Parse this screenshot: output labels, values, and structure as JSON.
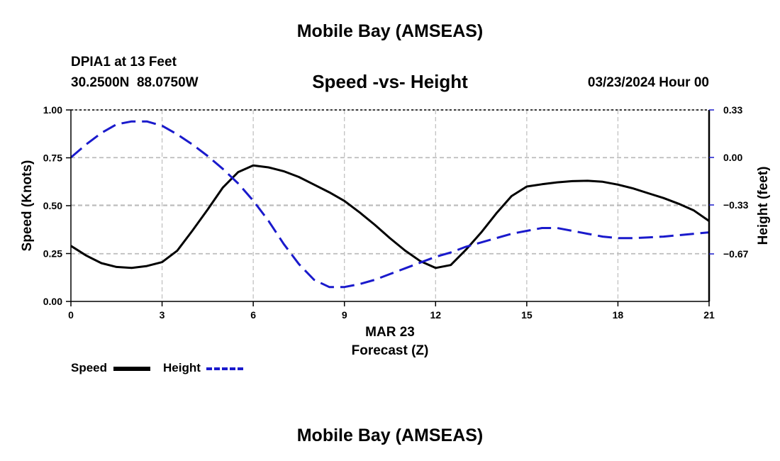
{
  "header": {
    "title_top": "Mobile Bay (AMSEAS)",
    "station": "DPIA1 at 13 Feet",
    "coords": "30.2500N  88.0750W",
    "subtitle": "Speed -vs- Height",
    "datetime": "03/23/2024 Hour 00",
    "title_bottom": "Mobile Bay (AMSEAS)"
  },
  "legend": {
    "speed_label": "Speed",
    "height_label": "Height"
  },
  "colors": {
    "speed": "#000000",
    "height": "#1a1acc",
    "grid": "#bdbdbd"
  },
  "chart_data": {
    "type": "line",
    "title": "Speed -vs- Height",
    "xlabel": "Forecast (Z)",
    "xlabel_date": "MAR 23",
    "ylabel_left": "Speed (Knots)",
    "ylabel_right": "Height (feet)",
    "xlim": [
      0,
      21
    ],
    "ylim_left": [
      0,
      1
    ],
    "ylim_right": [
      -1,
      0.33
    ],
    "x_ticks": [
      0,
      3,
      6,
      9,
      12,
      15,
      18,
      21
    ],
    "x_tick_labels": [
      "0",
      "3",
      "6",
      "9",
      "12",
      "15",
      "18",
      "21"
    ],
    "y_left_ticks": [
      0,
      0.25,
      0.5,
      0.75,
      1.0
    ],
    "y_left_tick_labels": [
      "0.00",
      "0.25",
      "0.50",
      "0.75",
      "1.00"
    ],
    "y_right_ticks": [
      0.33,
      0.0,
      -0.33,
      -0.67
    ],
    "y_right_tick_labels": [
      "0.33",
      "0.00",
      "−0.33",
      "−0.67"
    ],
    "grid": true,
    "series": [
      {
        "name": "Speed",
        "axis": "left",
        "style": "solid",
        "x": [
          0,
          0.5,
          1,
          1.5,
          2,
          2.5,
          3,
          3.5,
          4,
          4.5,
          5,
          5.5,
          6,
          6.5,
          7,
          7.5,
          8,
          8.5,
          9,
          9.5,
          10,
          10.5,
          11,
          11.5,
          12,
          12.5,
          13,
          13.5,
          14,
          14.5,
          15,
          15.5,
          16,
          16.5,
          17,
          17.5,
          18,
          18.5,
          19,
          19.5,
          20,
          20.5,
          21
        ],
        "values": [
          0.29,
          0.24,
          0.2,
          0.18,
          0.175,
          0.185,
          0.205,
          0.265,
          0.37,
          0.48,
          0.595,
          0.675,
          0.71,
          0.7,
          0.68,
          0.65,
          0.61,
          0.57,
          0.525,
          0.465,
          0.4,
          0.33,
          0.265,
          0.21,
          0.175,
          0.19,
          0.27,
          0.36,
          0.46,
          0.55,
          0.6,
          0.612,
          0.622,
          0.628,
          0.63,
          0.625,
          0.61,
          0.59,
          0.565,
          0.54,
          0.51,
          0.475,
          0.42
        ]
      },
      {
        "name": "Height",
        "axis": "right",
        "style": "dashed",
        "x": [
          0,
          0.5,
          1,
          1.5,
          2,
          2.5,
          3,
          3.5,
          4,
          4.5,
          5,
          5.5,
          6,
          6.5,
          7,
          7.5,
          8,
          8.5,
          9,
          9.5,
          10,
          10.5,
          11,
          11.5,
          12,
          12.5,
          13,
          13.5,
          14,
          14.5,
          15,
          15.5,
          16,
          16.5,
          17,
          17.5,
          18,
          18.5,
          19,
          19.5,
          20,
          20.5,
          21
        ],
        "values": [
          0.0,
          0.09,
          0.17,
          0.23,
          0.25,
          0.25,
          0.22,
          0.16,
          0.09,
          0.01,
          -0.08,
          -0.18,
          -0.3,
          -0.44,
          -0.6,
          -0.74,
          -0.85,
          -0.9,
          -0.9,
          -0.88,
          -0.85,
          -0.81,
          -0.77,
          -0.73,
          -0.69,
          -0.66,
          -0.62,
          -0.59,
          -0.56,
          -0.53,
          -0.51,
          -0.49,
          -0.49,
          -0.51,
          -0.53,
          -0.55,
          -0.56,
          -0.56,
          -0.555,
          -0.55,
          -0.54,
          -0.53,
          -0.52
        ]
      }
    ]
  }
}
